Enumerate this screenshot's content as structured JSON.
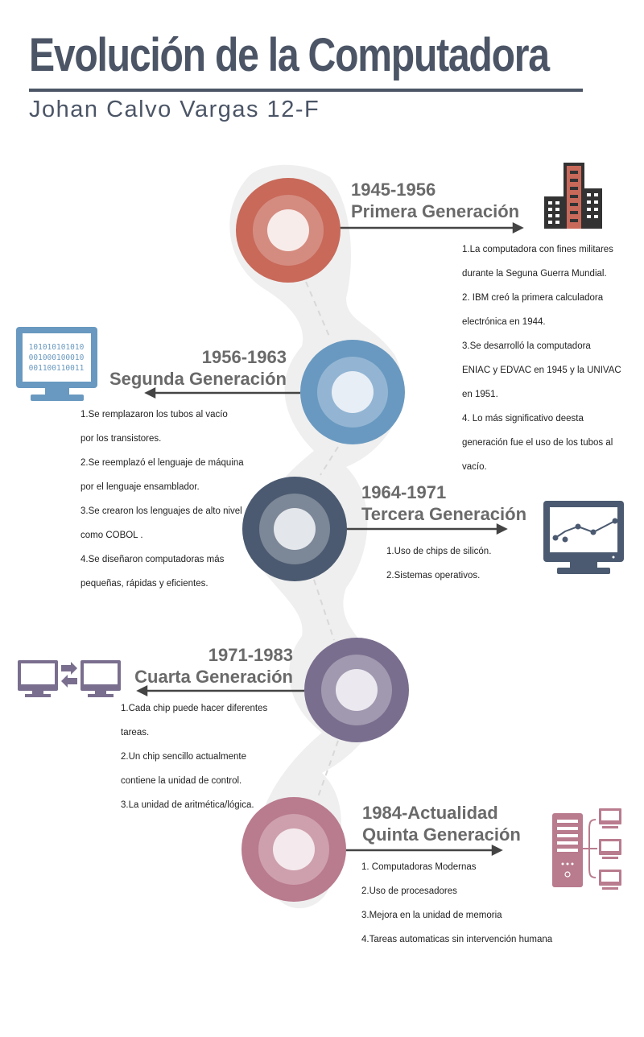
{
  "title": "Evolución de la Computadora",
  "subtitle": "Johan Calvo Vargas 12-F",
  "accent_color": "#4b5566",
  "generations": [
    {
      "years": "1945-1956",
      "name": "Primera Generación",
      "color": "#c8695a",
      "icon": "buildings-icon",
      "items": [
        "1.La computadora con fines militares",
        "durante la Seguna Guerra Mundial.",
        "2. IBM creó la primera calculadora",
        "electrónica en 1944.",
        "3.Se desarrolló la computadora",
        "ENIAC y EDVAC en 1945 y la UNIVAC",
        "en 1951.",
        "4. Lo más significativo deesta",
        "generación fue el uso de los tubos al",
        "vacío."
      ]
    },
    {
      "years": "1956-1963",
      "name": "Segunda Generación",
      "color": "#6999c0",
      "icon": "binary-monitor-icon",
      "icon_text": [
        "101010101010",
        "001000100010",
        "001100110011"
      ],
      "items": [
        "1.Se remplazaron los tubos al vacío",
        "por los transistores.",
        "2.Se reemplazó el lenguaje de máquina",
        "por el lenguaje ensamblador.",
        "3.Se crearon los lenguajes de alto nivel",
        "como COBOL .",
        "4.Se diseñaron computadoras más",
        "pequeñas, rápidas y eficientes."
      ]
    },
    {
      "years": "1964-1971",
      "name": "Tercera Generación",
      "color": "#4b5a70",
      "icon": "chart-monitor-icon",
      "items": [
        "1.Uso de chips de silicón.",
        "2.Sistemas operativos."
      ]
    },
    {
      "years": "1971-1983",
      "name": "Cuarta Generación",
      "color": "#7a6e8e",
      "icon": "networked-computers-icon",
      "items": [
        "1.Cada chip puede hacer diferentes",
        "tareas.",
        "2.Un chip sencillo actualmente",
        "contiene la unidad de control.",
        "3.La unidad de aritmética/lógica."
      ]
    },
    {
      "years": "1984-Actualidad",
      "name": "Quinta Generación",
      "color": "#b97b8e",
      "icon": "server-network-icon",
      "items": [
        " 1. Computadoras Modernas",
        "2.Uso de procesadores",
        "3.Mejora en la unidad de memoria",
        "4.Tareas automaticas sin intervención humana"
      ]
    }
  ]
}
